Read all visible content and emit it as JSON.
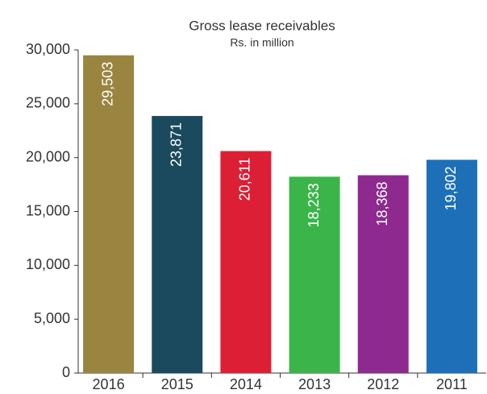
{
  "chart_data": {
    "type": "bar",
    "title": "Gross lease receivables",
    "subtitle": "Rs. in million",
    "categories": [
      "2016",
      "2015",
      "2014",
      "2013",
      "2012",
      "2011"
    ],
    "values": [
      29503,
      23871,
      20611,
      18233,
      18368,
      19802
    ],
    "value_labels": [
      "29,503",
      "23,871",
      "20,611",
      "18,233",
      "18,368",
      "19,802"
    ],
    "colors": [
      "#9a8540",
      "#1b4a5e",
      "#dc1f35",
      "#3bb54a",
      "#8e2a8f",
      "#1d70b7"
    ],
    "ylim": [
      0,
      30000
    ],
    "yticks": [
      0,
      {
        "value": 5000,
        "label": "5,000"
      },
      {
        "value": 10000,
        "label": "10,000"
      },
      {
        "value": 15000,
        "label": "15,000"
      },
      {
        "value": 20000,
        "label": "20,000"
      },
      {
        "value": 25000,
        "label": "25,000"
      },
      {
        "value": 30000,
        "label": "30,000"
      }
    ],
    "grid": false
  }
}
